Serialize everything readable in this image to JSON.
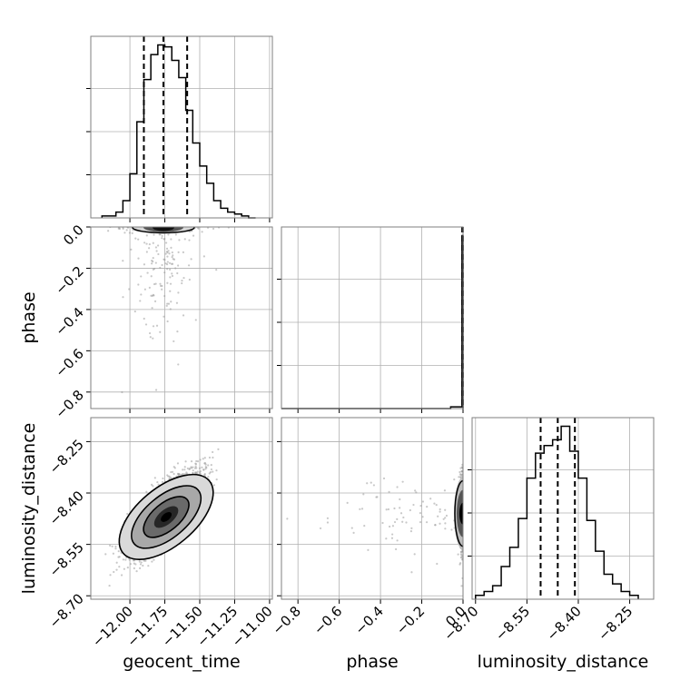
{
  "chart_data": {
    "type": "corner",
    "parameters": [
      "geocent_time",
      "phase",
      "luminosity_distance"
    ],
    "ranges": {
      "geocent_time": [
        -12.28,
        -10.98
      ],
      "phase": [
        -0.88,
        0.0
      ],
      "luminosity_distance": [
        -8.71,
        -8.18
      ]
    },
    "ticks": {
      "geocent_time": [
        "−12.00",
        "−11.75",
        "−11.50",
        "−11.25",
        "−11.00"
      ],
      "phase": [
        "−0.8",
        "−0.6",
        "−0.4",
        "−0.2",
        "0.0"
      ],
      "luminosity_distance": [
        "−8.70",
        "−8.55",
        "−8.40",
        "−8.25"
      ]
    },
    "tick_values": {
      "geocent_time": [
        -12.0,
        -11.75,
        -11.5,
        -11.25,
        -11.0
      ],
      "phase": [
        -0.8,
        -0.6,
        -0.4,
        -0.2,
        0.0
      ],
      "luminosity_distance": [
        -8.7,
        -8.55,
        -8.4,
        -8.25
      ]
    },
    "quantiles": {
      "geocent_time": [
        -11.9,
        -11.76,
        -11.59
      ],
      "phase": [
        -0.004,
        -0.002,
        -0.001
      ],
      "luminosity_distance": [
        -8.51,
        -8.46,
        -8.41
      ]
    },
    "hist_geocent_time": {
      "bin_edges": [
        -12.2,
        -12.15,
        -12.1,
        -12.05,
        -12.0,
        -11.95,
        -11.9,
        -11.85,
        -11.8,
        -11.75,
        -11.7,
        -11.65,
        -11.6,
        -11.55,
        -11.5,
        -11.45,
        -11.4,
        -11.35,
        -11.3,
        -11.25,
        -11.2,
        -11.15,
        -11.1
      ],
      "counts": [
        1,
        1,
        3,
        9,
        23,
        50,
        72,
        85,
        90,
        89,
        82,
        73,
        56,
        39,
        27,
        18,
        9,
        5,
        3,
        2,
        1,
        0
      ]
    },
    "hist_phase": {
      "bin_edges": [
        -0.88,
        -0.2,
        -0.18,
        -0.16,
        -0.14,
        -0.12,
        -0.1,
        -0.08,
        -0.06,
        -0.04,
        -0.02,
        -0.005,
        0.0
      ],
      "counts": [
        0,
        0,
        0,
        0,
        0,
        0,
        0,
        0,
        1,
        1,
        1,
        100
      ]
    },
    "hist_luminosity_distance": {
      "bin_edges": [
        -8.7,
        -8.675,
        -8.65,
        -8.625,
        -8.6,
        -8.575,
        -8.55,
        -8.525,
        -8.5,
        -8.475,
        -8.45,
        -8.425,
        -8.4,
        -8.375,
        -8.35,
        -8.325,
        -8.3,
        -8.275,
        -8.25,
        -8.225
      ],
      "counts": [
        2,
        4,
        7,
        17,
        27,
        42,
        63,
        76,
        80,
        83,
        90,
        77,
        63,
        41,
        25,
        13,
        8,
        4,
        2
      ]
    },
    "grid": true,
    "colors": {
      "line": "#000000",
      "grid": "#b0b0b0",
      "points": "#9a9a9a"
    }
  }
}
